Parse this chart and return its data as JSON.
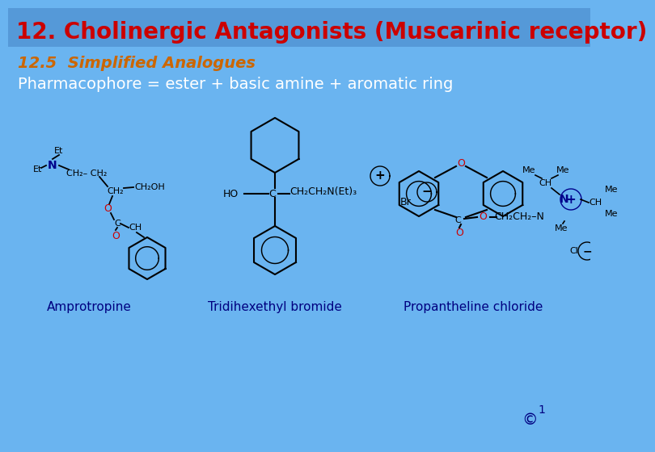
{
  "bg_color": "#6ab4f0",
  "title_bar_color": "#5599d8",
  "title": "12. Cholinergic Antagonists (Muscarinic receptor)",
  "title_color": "#cc0000",
  "title_fontsize": 20,
  "title_bold": true,
  "subtitle": "12.5  Simplified Analogues",
  "subtitle_color": "#cc6600",
  "subtitle_fontsize": 14,
  "subtitle_italic": true,
  "pharmacophore_text": "Pharmacophore = ester + basic amine + aromatic ring",
  "pharmacophore_color": "#ffffff",
  "pharmacophore_fontsize": 14,
  "label1": "Amprotropine",
  "label2": "Tridihexethyl bromide",
  "label3": "Propantheline chloride",
  "label_color": "#000080",
  "label_fontsize": 11,
  "copyright_text": "©",
  "copyright_superscript": "1",
  "copyright_color": "#000080",
  "dark_blue": "#00008B",
  "red_color": "#cc0000",
  "black": "#000000"
}
